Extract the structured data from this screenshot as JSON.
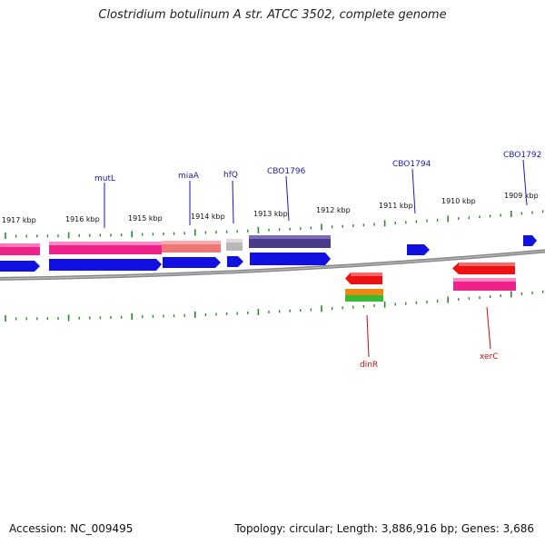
{
  "title": "Clostridium botulinum A str. ATCC 3502, complete genome",
  "footer": {
    "accession": "Accession: NC_009495",
    "summary": "Topology: circular; Length: 3,886,916 bp; Genes: 3,686"
  },
  "ticks": [
    "1917 kbp",
    "1916 kbp",
    "1915 kbp",
    "1914 kbp",
    "1913 kbp",
    "1912 kbp",
    "1911 kbp",
    "1910 kbp",
    "1909 kbp"
  ],
  "genes_top": [
    {
      "name": "mutL"
    },
    {
      "name": "miaA"
    },
    {
      "name": "hfQ"
    },
    {
      "name": "CBO1796"
    },
    {
      "name": "CBO1794"
    },
    {
      "name": "CBO1792"
    }
  ],
  "genes_bottom": [
    {
      "name": "dinR"
    },
    {
      "name": "xerC"
    }
  ],
  "colors": {
    "magenta": "#ee2288",
    "blue": "#1010e0",
    "salmon": "#ee7777",
    "gray": "#b8b8b8",
    "purple": "#4a3c8a",
    "red": "#ee1111",
    "orange": "#ee8811",
    "green": "#33bb33",
    "tick": "#2a8a2a",
    "backbone": "#777777"
  }
}
